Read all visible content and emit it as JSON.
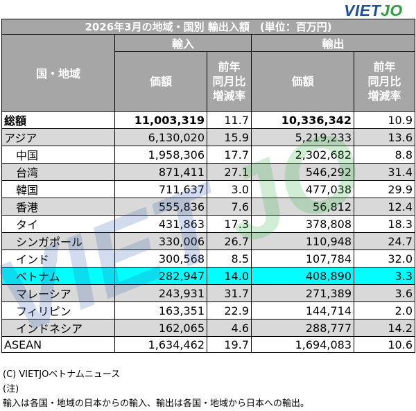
{
  "logo": {
    "part1": "VIET",
    "part2": "JO"
  },
  "table": {
    "title": "2026年3月の地域・国別 輸出入額　(単位：百万円)",
    "header": {
      "region": "国・地域",
      "import": "輸入",
      "export": "輸出",
      "value": "価額",
      "yoy_line1": "前年",
      "yoy_line2": "同月比",
      "yoy_line3": "増減率"
    },
    "rows": [
      {
        "name": "総額",
        "import_value": "11,003,319",
        "import_yoy": "11.7",
        "export_value": "10,336,342",
        "export_yoy": "10.9"
      },
      {
        "name": "アジア",
        "import_value": "6,130,020",
        "import_yoy": "15.9",
        "export_value": "5,219,233",
        "export_yoy": "13.6"
      },
      {
        "name": "中国",
        "import_value": "1,958,306",
        "import_yoy": "17.7",
        "export_value": "2,302,682",
        "export_yoy": "8.8"
      },
      {
        "name": "台湾",
        "import_value": "871,411",
        "import_yoy": "27.1",
        "export_value": "546,292",
        "export_yoy": "31.4"
      },
      {
        "name": "韓国",
        "import_value": "711,637",
        "import_yoy": "3.0",
        "export_value": "477,038",
        "export_yoy": "29.9"
      },
      {
        "name": "香港",
        "import_value": "555,836",
        "import_yoy": "7.6",
        "export_value": "56,812",
        "export_yoy": "12.4"
      },
      {
        "name": "タイ",
        "import_value": "431,863",
        "import_yoy": "17.3",
        "export_value": "378,808",
        "export_yoy": "18.3"
      },
      {
        "name": "シンガポール",
        "import_value": "330,006",
        "import_yoy": "26.7",
        "export_value": "110,948",
        "export_yoy": "24.7"
      },
      {
        "name": "インド",
        "import_value": "300,568",
        "import_yoy": "8.5",
        "export_value": "107,784",
        "export_yoy": "32.0"
      },
      {
        "name": "ベトナム",
        "import_value": "282,947",
        "import_yoy": "14.0",
        "export_value": "408,890",
        "export_yoy": "3.3"
      },
      {
        "name": "マレーシア",
        "import_value": "243,931",
        "import_yoy": "31.7",
        "export_value": "271,389",
        "export_yoy": "3.6"
      },
      {
        "name": "フィリピン",
        "import_value": "163,351",
        "import_yoy": "22.9",
        "export_value": "144,714",
        "export_yoy": "2.0"
      },
      {
        "name": "インドネシア",
        "import_value": "162,065",
        "import_yoy": "4.6",
        "export_value": "288,777",
        "export_yoy": "14.2"
      },
      {
        "name": "ASEAN",
        "import_value": "1,634,462",
        "import_yoy": "19.7",
        "export_value": "1,694,083",
        "export_yoy": "10.6"
      }
    ]
  },
  "footer": {
    "copyright": "(C) VIETJOベトナムニュース",
    "note_label": "(注)",
    "note_text": "輸入は各国・地域の日本からの輸入、輸出は各国・地域から日本への輸出。"
  },
  "watermark_text": "VIETJO",
  "colors": {
    "header_bg": "#a6a6a6",
    "row_shade": "#d9d9d9",
    "highlight": "#00ffff",
    "logo_blue": "#1d4f9c",
    "logo_green": "#2e9e3e"
  }
}
